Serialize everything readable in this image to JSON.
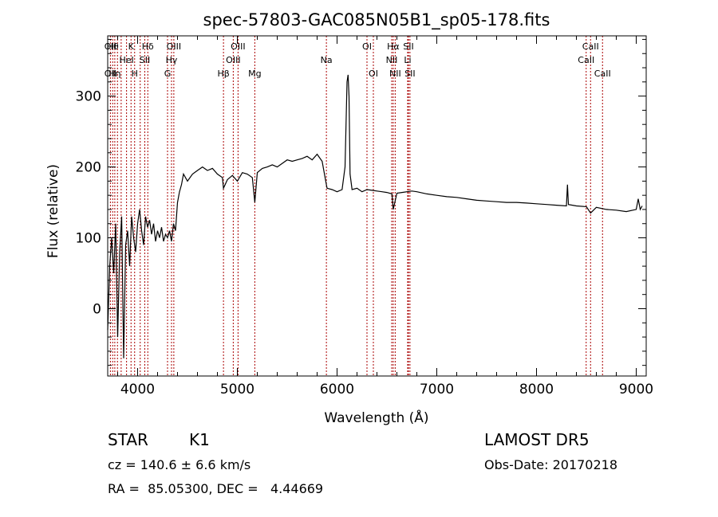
{
  "chart_data": {
    "type": "line",
    "title": "spec-57803-GAC085N05B1_sp05-178.fits",
    "xlabel": "Wavelength (Å)",
    "ylabel": "Flux (relative)",
    "xlim": [
      3700,
      9100
    ],
    "ylim": [
      -95,
      385
    ],
    "xticks": [
      4000,
      5000,
      6000,
      7000,
      8000,
      9000
    ],
    "xtick_labels": [
      "4000",
      "5000",
      "6000",
      "7000",
      "8000",
      "9000"
    ],
    "yticks": [
      0,
      100,
      200,
      300
    ],
    "ytick_labels": [
      "0",
      "100",
      "200",
      "300"
    ],
    "line_color": "#000000",
    "marker_color": "#aa0000",
    "series": [
      {
        "x": [
          3700,
          3720,
          3740,
          3760,
          3780,
          3800,
          3820,
          3840,
          3860,
          3880,
          3900,
          3920,
          3940,
          3960,
          3980,
          4000,
          4020,
          4040,
          4060,
          4080,
          4100,
          4120,
          4140,
          4160,
          4180,
          4200,
          4220,
          4240,
          4260,
          4280,
          4300,
          4320,
          4340,
          4360,
          4380,
          4400,
          4420,
          4440,
          4460,
          4480,
          4500,
          4550,
          4600,
          4650,
          4700,
          4750,
          4800,
          4850,
          4861,
          4900,
          4950,
          5000,
          5050,
          5100,
          5150,
          5175,
          5200,
          5250,
          5300,
          5350,
          5400,
          5450,
          5500,
          5550,
          5600,
          5650,
          5700,
          5750,
          5800,
          5850,
          5893,
          5900,
          5950,
          6000,
          6050,
          6080,
          6100,
          6110,
          6120,
          6130,
          6150,
          6200,
          6250,
          6300,
          6350,
          6400,
          6450,
          6500,
          6550,
          6563,
          6600,
          6650,
          6700,
          6750,
          6800,
          6900,
          7000,
          7100,
          7200,
          7300,
          7400,
          7500,
          7600,
          7700,
          7800,
          7900,
          8000,
          8100,
          8200,
          8300,
          8310,
          8320,
          8400,
          8500,
          8542,
          8600,
          8700,
          8800,
          8900,
          9000,
          9020,
          9040,
          9060
        ],
        "y": [
          -30,
          60,
          100,
          50,
          120,
          -40,
          80,
          130,
          -70,
          90,
          110,
          60,
          130,
          100,
          80,
          120,
          140,
          110,
          90,
          130,
          115,
          125,
          105,
          120,
          95,
          110,
          100,
          115,
          95,
          105,
          100,
          110,
          95,
          120,
          110,
          150,
          165,
          175,
          190,
          185,
          180,
          190,
          195,
          200,
          195,
          198,
          190,
          185,
          170,
          182,
          188,
          180,
          192,
          190,
          185,
          150,
          192,
          198,
          200,
          203,
          200,
          205,
          210,
          208,
          210,
          212,
          215,
          210,
          218,
          208,
          175,
          170,
          168,
          165,
          168,
          200,
          320,
          330,
          300,
          190,
          168,
          170,
          165,
          168,
          167,
          166,
          165,
          164,
          162,
          140,
          163,
          164,
          165,
          166,
          165,
          162,
          160,
          158,
          157,
          155,
          153,
          152,
          151,
          150,
          150,
          149,
          148,
          147,
          146,
          145,
          175,
          147,
          145,
          144,
          135,
          143,
          140,
          139,
          137,
          140,
          155,
          140,
          145
        ]
      }
    ],
    "lines": [
      {
        "x": 3727,
        "l1": "OII",
        "l2": "",
        "l3": "OII"
      },
      {
        "x": 3750,
        "l1": "Hθ",
        "l2": "",
        "l3": ""
      },
      {
        "x": 3771,
        "l1": "",
        "l2": "",
        "l3": "Hη"
      },
      {
        "x": 3798,
        "l1": "",
        "l2": "",
        "l3": ""
      },
      {
        "x": 3835,
        "l1": "",
        "l2": "",
        "l3": ""
      },
      {
        "x": 3889,
        "l1": "",
        "l2": "HeI",
        "l3": ""
      },
      {
        "x": 3934,
        "l1": "K",
        "l2": "",
        "l3": ""
      },
      {
        "x": 3970,
        "l1": "",
        "l2": "",
        "l3": "H"
      },
      {
        "x": 4026,
        "l1": "",
        "l2": "",
        "l3": ""
      },
      {
        "x": 4072,
        "l1": "",
        "l2": "SII",
        "l3": ""
      },
      {
        "x": 4102,
        "l1": "Hδ",
        "l2": "",
        "l3": ""
      },
      {
        "x": 4300,
        "l1": "",
        "l2": "",
        "l3": "G"
      },
      {
        "x": 4340,
        "l1": "",
        "l2": "Hγ",
        "l3": ""
      },
      {
        "x": 4363,
        "l1": "OIII",
        "l2": "",
        "l3": ""
      },
      {
        "x": 4861,
        "l1": "",
        "l2": "",
        "l3": "Hβ"
      },
      {
        "x": 4959,
        "l1": "",
        "l2": "OIII",
        "l3": ""
      },
      {
        "x": 5007,
        "l1": "OIII",
        "l2": "",
        "l3": ""
      },
      {
        "x": 5175,
        "l1": "",
        "l2": "",
        "l3": "Mg"
      },
      {
        "x": 5893,
        "l1": "",
        "l2": "Na",
        "l3": ""
      },
      {
        "x": 6300,
        "l1": "OI",
        "l2": "",
        "l3": ""
      },
      {
        "x": 6364,
        "l1": "",
        "l2": "",
        "l3": "OI"
      },
      {
        "x": 6548,
        "l1": "",
        "l2": "NII",
        "l3": ""
      },
      {
        "x": 6563,
        "l1": "Hα",
        "l2": "",
        "l3": ""
      },
      {
        "x": 6583,
        "l1": "",
        "l2": "",
        "l3": "NII"
      },
      {
        "x": 6708,
        "l1": "",
        "l2": "Li",
        "l3": ""
      },
      {
        "x": 6716,
        "l1": "SII",
        "l2": "",
        "l3": ""
      },
      {
        "x": 6731,
        "l1": "",
        "l2": "",
        "l3": "SII"
      },
      {
        "x": 8498,
        "l1": "",
        "l2": "CaII",
        "l3": ""
      },
      {
        "x": 8542,
        "l1": "CaII",
        "l2": "",
        "l3": ""
      },
      {
        "x": 8662,
        "l1": "",
        "l2": "",
        "l3": "CaII"
      }
    ]
  },
  "info": {
    "class_label": "STAR",
    "subclass_label": "K1",
    "survey": "LAMOST DR5",
    "cz_label": "cz = 140.6 ± 6.6 km/s",
    "obs_date": "Obs-Date: 20170218",
    "radec": "RA =  85.05300, DEC =   4.44669"
  }
}
